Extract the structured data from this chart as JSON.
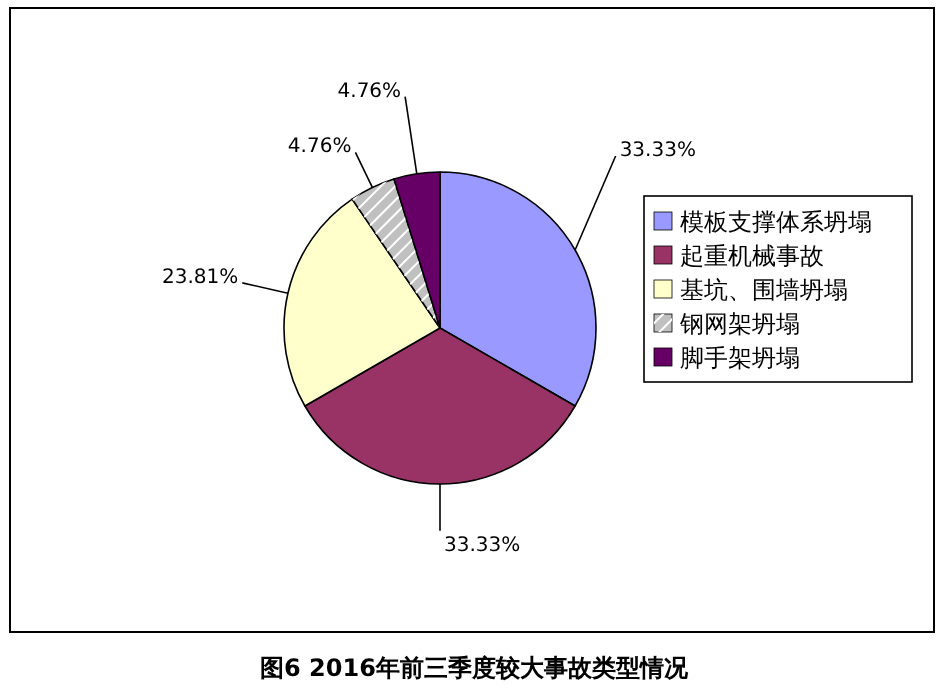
{
  "chart_data": {
    "type": "pie",
    "title": "图6  2016年前三季度较大事故类型情况",
    "categories": [
      "模板支撑体系坍塌",
      "起重机械事故",
      "基坑、围墙坍塌",
      "钢网架坍塌",
      "脚手架坍塌"
    ],
    "values": [
      33.33,
      33.33,
      23.81,
      4.76,
      4.76
    ],
    "colors": [
      "#9999ff",
      "#993366",
      "#ffffcc",
      "#c0c0c0",
      "#660066"
    ],
    "value_labels": [
      "33.33%",
      "33.33%",
      "23.81%",
      "4.76%",
      "4.76%"
    ],
    "legend": "right"
  }
}
